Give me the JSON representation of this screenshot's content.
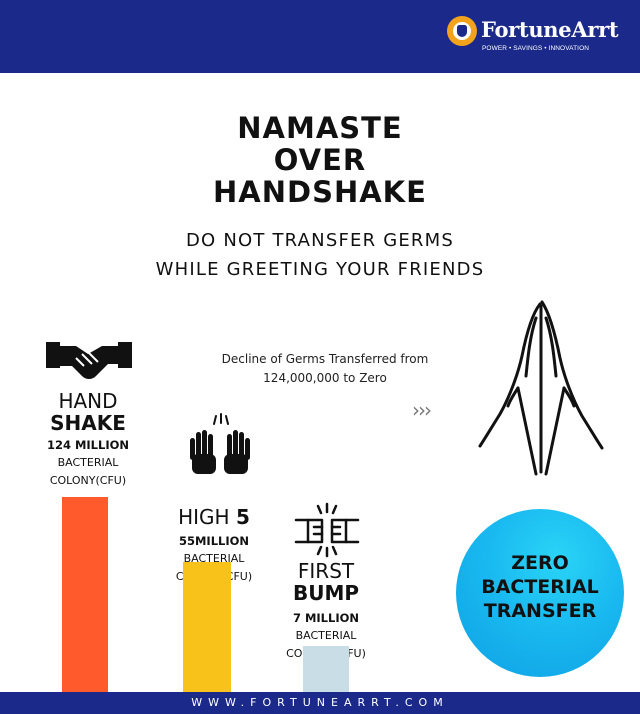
{
  "header": {
    "brand": "FortuneArrt",
    "tagline": "POWER • SAVINGS • INNOVATION",
    "color": "#1b2a8a"
  },
  "title_lines": [
    "NAMASTE",
    "OVER",
    "HANDSHAKE"
  ],
  "subtitle_lines": [
    "DO NOT TRANSFER GERMS",
    "WHILE GREETING YOUR FRIENDS"
  ],
  "note_lines": [
    "Decline of Germs Transferred from",
    "124,000,000 to Zero"
  ],
  "chevrons": "›››",
  "chart_data": {
    "type": "bar",
    "categories": [
      "HAND SHAKE",
      "HIGH 5",
      "FIRST BUMP",
      "ZERO BACTERIAL TRANSFER"
    ],
    "values": [
      124000000,
      55000000,
      7000000,
      0
    ],
    "unit": "BACTERIAL COLONY(CFU)",
    "colors": [
      "#fe5a2c",
      "#f9c21b",
      "#c9dde6",
      "#1cbcf2"
    ],
    "series": [
      {
        "label_a": "HAND",
        "label_b": "SHAKE",
        "amount": "124 MILLION",
        "unit_a": "BACTERIAL",
        "unit_b": "COLONY(CFU)"
      },
      {
        "label_a": "HIGH",
        "label_b": "5",
        "amount": "55MILLION",
        "unit_a": "BACTERIAL",
        "unit_b": "COLONY(CFU)"
      },
      {
        "label_a": "FIRST",
        "label_b": "BUMP",
        "amount": "7 MILLION",
        "unit_a": "BACTERIAL",
        "unit_b": "COLONY (CFU)"
      }
    ],
    "zero_lines": [
      "ZERO",
      "BACTERIAL",
      "TRANSFER"
    ]
  },
  "icons": [
    "handshake-icon",
    "high-five-icon",
    "fist-bump-icon",
    "namaste-hands-icon",
    "fortunearrt-logo-icon"
  ],
  "footer": {
    "url": "WWW.FORTUNEARRT.COM"
  }
}
